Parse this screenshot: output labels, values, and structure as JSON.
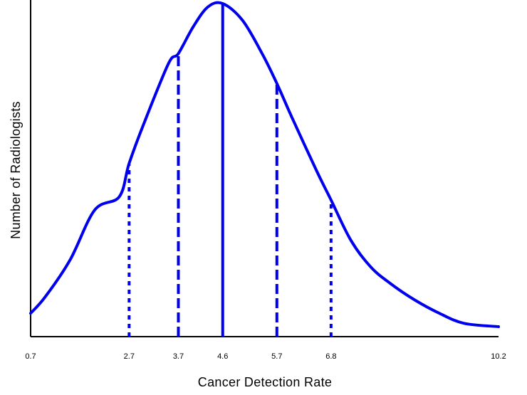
{
  "chart_data": {
    "type": "line",
    "title": "",
    "xlabel": "Cancer Detection Rate",
    "ylabel": "Number of Radiologists",
    "xlim": [
      0.7,
      10.2
    ],
    "x_ticks": [
      0.7,
      2.7,
      3.7,
      4.6,
      5.7,
      6.8,
      10.2
    ],
    "x_tick_labels": [
      "0.7",
      "2.7",
      "3.7",
      "4.6",
      "5.7",
      "6.8",
      "10.2"
    ],
    "y_ticks_shown": false,
    "grid": false,
    "legend": "none",
    "series": [
      {
        "color": "#0000ee",
        "style": "solid",
        "x": [
          0.7,
          1.0,
          1.5,
          2.0,
          2.5,
          2.7,
          3.0,
          3.5,
          3.7,
          4.0,
          4.3,
          4.6,
          5.0,
          5.4,
          5.7,
          6.0,
          6.5,
          6.8,
          7.2,
          7.6,
          8.0,
          8.5,
          9.0,
          9.5,
          10.2
        ],
        "y": [
          0.07,
          0.12,
          0.23,
          0.38,
          0.42,
          0.52,
          0.64,
          0.82,
          0.85,
          0.93,
          0.99,
          1.0,
          0.95,
          0.85,
          0.76,
          0.66,
          0.5,
          0.41,
          0.29,
          0.21,
          0.16,
          0.11,
          0.07,
          0.04,
          0.03
        ]
      }
    ],
    "reference_lines": [
      {
        "x": 2.7,
        "style": "dotted",
        "color": "#0000ee"
      },
      {
        "x": 3.7,
        "style": "dashed",
        "color": "#0000ee"
      },
      {
        "x": 4.6,
        "style": "solid",
        "color": "#0000ee"
      },
      {
        "x": 5.7,
        "style": "dashed",
        "color": "#0000ee"
      },
      {
        "x": 6.8,
        "style": "dotted",
        "color": "#0000ee"
      }
    ]
  }
}
